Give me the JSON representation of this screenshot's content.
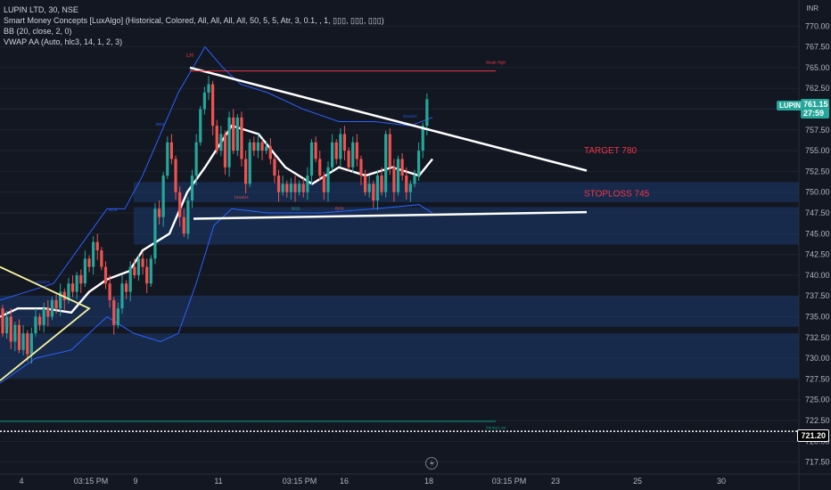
{
  "header": {
    "symbol_line": "LUPIN LTD, 30, NSE",
    "indicators": [
      "Smart Money Concepts [LuxAlgo] (Historical, Colored, All, All, All, All, 50, 5, 5, Atr, 3, 0.1, , 1, ▯▯▯, ▯▯▯, ▯▯▯)",
      "BB (20, close, 2, 0)",
      "VWAP AA (Auto, hlc3, 14, 1, 2, 3)"
    ]
  },
  "currency": "INR",
  "price_tag": {
    "symbol": "LUPIN",
    "price": "761.15",
    "countdown": "27:59"
  },
  "dotted_tag": {
    "price": "721.20"
  },
  "colors": {
    "background": "#131722",
    "up": "#26a69a",
    "down": "#ef5350",
    "bb": "#2962ff",
    "zone": "#1e3a6e",
    "target": "#f23645",
    "trendline": "#ffffff",
    "triangle": "#f5f5a0"
  },
  "chart_data": {
    "type": "candlestick",
    "ylim": [
      716,
      772
    ],
    "y_ticks": [
      717.5,
      720.0,
      722.5,
      725.0,
      727.5,
      730.0,
      732.5,
      735.0,
      737.5,
      740.0,
      742.5,
      745.0,
      747.5,
      750.0,
      752.5,
      755.0,
      757.5,
      760.0,
      762.5,
      765.0,
      767.5,
      770.0
    ],
    "x_ticks": [
      "4",
      "03:15 PM",
      "9",
      "11",
      "03:15 PM",
      "16",
      "18",
      "03:15 PM",
      "23",
      "25",
      "30"
    ],
    "annotations": {
      "lh": "LH",
      "target": "TARGET 780",
      "stoploss": "STOPLOSS 745",
      "weak_high": "Weak High",
      "strong_low": "Strong Low",
      "choch": "CHoCH",
      "bos": "BOS"
    },
    "levels": {
      "weak_high": 764.6,
      "strong_low": 722.4,
      "dotted": 721.2
    }
  }
}
